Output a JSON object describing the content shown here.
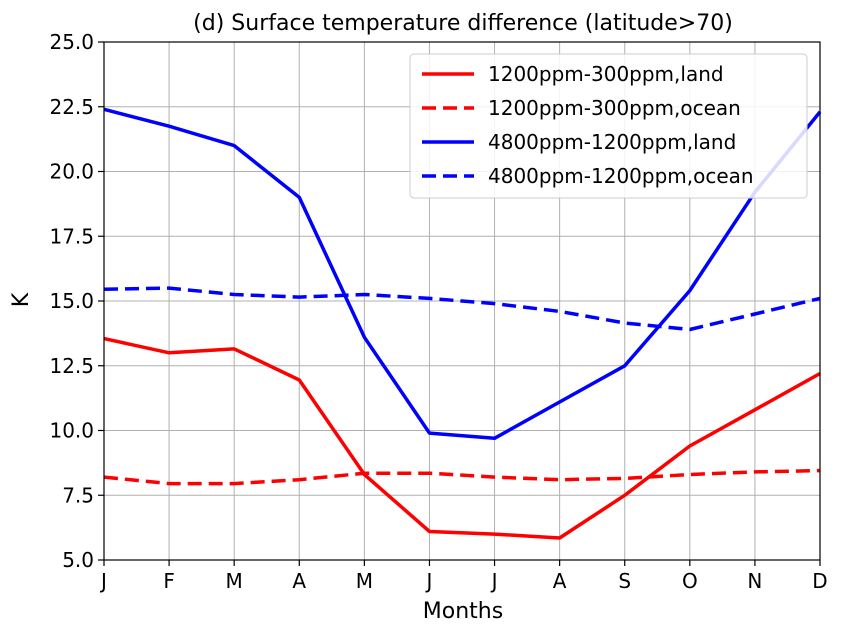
{
  "chart_data": {
    "type": "line",
    "title": "(d) Surface temperature difference (latitude>70)",
    "xlabel": "Months",
    "ylabel": "K",
    "categories": [
      "J",
      "F",
      "M",
      "A",
      "M",
      "J",
      "J",
      "A",
      "S",
      "O",
      "N",
      "D"
    ],
    "ylim": [
      5.0,
      25.0
    ],
    "yticks": [
      "5.0",
      "7.5",
      "10.0",
      "12.5",
      "15.0",
      "17.5",
      "20.0",
      "22.5",
      "25.0"
    ],
    "grid": true,
    "legend_position": "top-right",
    "series": [
      {
        "name": "1200ppm-300ppm,land",
        "color": "#ff0000",
        "style": "solid",
        "values": [
          13.55,
          13.0,
          13.15,
          11.95,
          8.3,
          6.1,
          6.0,
          5.85,
          7.5,
          9.4,
          10.8,
          12.2
        ]
      },
      {
        "name": "1200ppm-300ppm,ocean",
        "color": "#ff0000",
        "style": "dashed",
        "values": [
          8.2,
          7.95,
          7.95,
          8.1,
          8.35,
          8.35,
          8.2,
          8.1,
          8.15,
          8.3,
          8.4,
          8.45
        ]
      },
      {
        "name": "4800ppm-1200ppm,land",
        "color": "#0000ff",
        "style": "solid",
        "values": [
          22.4,
          21.75,
          21.0,
          19.0,
          13.6,
          9.9,
          9.7,
          11.1,
          12.5,
          15.4,
          19.2,
          22.3
        ]
      },
      {
        "name": "4800ppm-1200ppm,ocean",
        "color": "#0000ff",
        "style": "dashed",
        "values": [
          15.45,
          15.5,
          15.25,
          15.15,
          15.25,
          15.1,
          14.9,
          14.6,
          14.15,
          13.9,
          14.5,
          15.1
        ]
      }
    ]
  }
}
